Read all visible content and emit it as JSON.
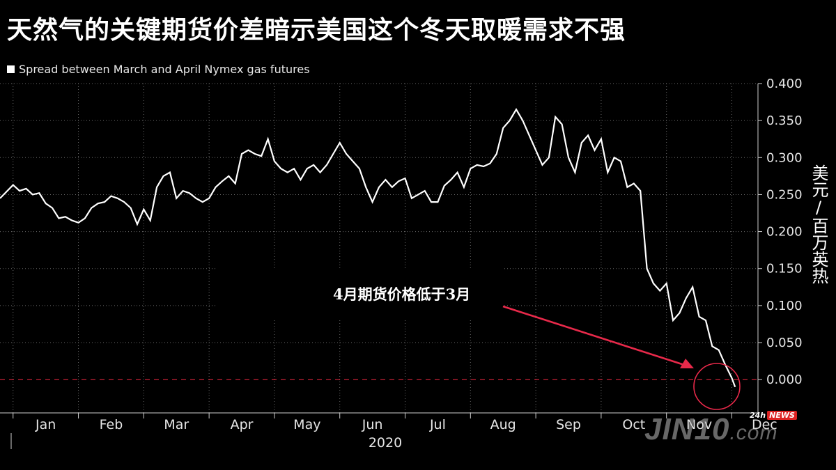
{
  "title": "天然气的关键期货价差暗示美国这个冬天取暖需求不强",
  "legend": {
    "label": "Spread between March and April Nymex gas futures",
    "color": "#ffffff"
  },
  "y_unit_label": "美元/百万英热",
  "annotation": {
    "text": "4月期货价格低于3月",
    "arrow_color": "#e8294a"
  },
  "watermark": {
    "main": "JIN10",
    "suffix": ".com",
    "badge_prefix": "24h",
    "badge": "NEWS"
  },
  "chart_data": {
    "type": "line",
    "title": "",
    "xlabel": "2020",
    "ylabel": "美元/百万英热",
    "ylim": [
      -0.045,
      0.4
    ],
    "yticks": [
      "0.400",
      "0.350",
      "0.300",
      "0.250",
      "0.200",
      "0.150",
      "0.100",
      "0.050",
      "0.000"
    ],
    "ytick_values": [
      0.4,
      0.35,
      0.3,
      0.25,
      0.2,
      0.15,
      0.1,
      0.05,
      0.0
    ],
    "xticks": [
      "Jan",
      "Feb",
      "Mar",
      "Apr",
      "May",
      "Jun",
      "Jul",
      "Aug",
      "Sep",
      "Oct",
      "Nov",
      "Dec"
    ],
    "x_unit": "month of 2020 (0 = Jan 1)",
    "xlim": [
      -0.2,
      11.4
    ],
    "zero_line": {
      "value": 0.0,
      "style": "dashed",
      "color": "#d9263a"
    },
    "series": [
      {
        "name": "Spread between March and April Nymex gas futures",
        "color": "#ffffff",
        "x": [
          -0.2,
          0.0,
          0.1,
          0.2,
          0.3,
          0.4,
          0.5,
          0.6,
          0.7,
          0.8,
          0.9,
          1.0,
          1.1,
          1.2,
          1.3,
          1.4,
          1.5,
          1.6,
          1.7,
          1.8,
          1.9,
          2.0,
          2.1,
          2.2,
          2.3,
          2.4,
          2.5,
          2.6,
          2.7,
          2.8,
          2.9,
          3.0,
          3.1,
          3.2,
          3.3,
          3.4,
          3.5,
          3.6,
          3.7,
          3.8,
          3.9,
          4.0,
          4.1,
          4.2,
          4.3,
          4.4,
          4.5,
          4.6,
          4.7,
          4.8,
          4.9,
          5.0,
          5.1,
          5.2,
          5.3,
          5.4,
          5.5,
          5.6,
          5.7,
          5.8,
          5.9,
          6.0,
          6.1,
          6.2,
          6.3,
          6.4,
          6.5,
          6.6,
          6.7,
          6.8,
          6.9,
          7.0,
          7.1,
          7.2,
          7.3,
          7.4,
          7.5,
          7.6,
          7.7,
          7.8,
          7.9,
          8.0,
          8.1,
          8.2,
          8.3,
          8.4,
          8.5,
          8.6,
          8.7,
          8.8,
          8.9,
          9.0,
          9.1,
          9.2,
          9.3,
          9.4,
          9.5,
          9.6,
          9.7,
          9.8,
          9.9,
          10.0,
          10.1,
          10.2,
          10.3,
          10.4,
          10.5,
          10.6,
          10.7,
          10.8,
          10.9,
          11.0,
          11.05
        ],
        "y": [
          0.245,
          0.263,
          0.255,
          0.258,
          0.25,
          0.252,
          0.238,
          0.232,
          0.218,
          0.22,
          0.215,
          0.212,
          0.218,
          0.232,
          0.238,
          0.24,
          0.248,
          0.245,
          0.24,
          0.232,
          0.21,
          0.23,
          0.215,
          0.26,
          0.275,
          0.28,
          0.245,
          0.255,
          0.252,
          0.245,
          0.24,
          0.245,
          0.26,
          0.268,
          0.275,
          0.265,
          0.305,
          0.31,
          0.305,
          0.302,
          0.325,
          0.295,
          0.285,
          0.28,
          0.285,
          0.27,
          0.285,
          0.29,
          0.28,
          0.29,
          0.305,
          0.32,
          0.305,
          0.295,
          0.285,
          0.26,
          0.24,
          0.26,
          0.27,
          0.26,
          0.268,
          0.272,
          0.245,
          0.25,
          0.255,
          0.24,
          0.24,
          0.262,
          0.27,
          0.28,
          0.26,
          0.285,
          0.29,
          0.288,
          0.292,
          0.305,
          0.34,
          0.35,
          0.365,
          0.35,
          0.33,
          0.31,
          0.29,
          0.3,
          0.355,
          0.345,
          0.3,
          0.28,
          0.32,
          0.33,
          0.31,
          0.325,
          0.28,
          0.3,
          0.295,
          0.26,
          0.265,
          0.255,
          0.15,
          0.13,
          0.12,
          0.13,
          0.08,
          0.09,
          0.11,
          0.125,
          0.085,
          0.08,
          0.045,
          0.04,
          0.02,
          0.002,
          -0.01
        ]
      }
    ]
  }
}
